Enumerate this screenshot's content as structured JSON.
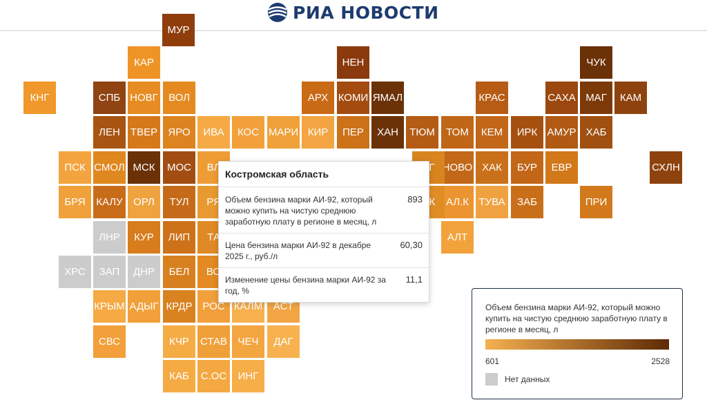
{
  "brand": {
    "name": "РИА НОВОСТИ",
    "color": "#1d3b6e"
  },
  "tiles": [
    {
      "label": "МУР",
      "color": "#8f3d0b"
    },
    {
      "label": "КАР",
      "color": "#ee9426"
    },
    {
      "label": "НЕН",
      "color": "#8a3a0c"
    },
    {
      "label": "ЧУК",
      "color": "#6b3107"
    },
    {
      "label": "КНГ",
      "color": "#f0982b"
    },
    {
      "label": "СПБ",
      "color": "#8f4411"
    },
    {
      "label": "НОВГ",
      "color": "#e68c22"
    },
    {
      "label": "ВОЛ",
      "color": "#e48a20"
    },
    {
      "label": "АРХ",
      "color": "#c96a16"
    },
    {
      "label": "КОМИ",
      "color": "#a44c10"
    },
    {
      "label": "ЯМАЛ",
      "color": "#6b3107"
    },
    {
      "label": "КРАС",
      "color": "#b65c15"
    },
    {
      "label": "САХА",
      "color": "#9a4810"
    },
    {
      "label": "МАГ",
      "color": "#7d3a09"
    },
    {
      "label": "КАМ",
      "color": "#8e430f"
    },
    {
      "label": "ЛЕН",
      "color": "#a85412"
    },
    {
      "label": "ТВЕР",
      "color": "#d6791b"
    },
    {
      "label": "ЯРО",
      "color": "#dd8320"
    },
    {
      "label": "ИВА",
      "color": "#f5aa45"
    },
    {
      "label": "КОС",
      "color": "#f2a03a"
    },
    {
      "label": "МАРИ",
      "color": "#f0a139"
    },
    {
      "label": "КИР",
      "color": "#f2a542"
    },
    {
      "label": "ПЕР",
      "color": "#cc7219"
    },
    {
      "label": "ХАН",
      "color": "#6b3107"
    },
    {
      "label": "ТЮМ",
      "color": "#b45b14"
    },
    {
      "label": "ТОМ",
      "color": "#c06617"
    },
    {
      "label": "КЕМ",
      "color": "#c26618"
    },
    {
      "label": "ИРК",
      "color": "#a5500f"
    },
    {
      "label": "АМУР",
      "color": "#b05a14"
    },
    {
      "label": "ХАБ",
      "color": "#a05011"
    },
    {
      "label": "ПСК",
      "color": "#f3a43f"
    },
    {
      "label": "СМОЛ",
      "color": "#e08820"
    },
    {
      "label": "МСК",
      "color": "#6b3107"
    },
    {
      "label": "МОС",
      "color": "#a24e12"
    },
    {
      "label": "ВЛ",
      "color": "#ee9d35"
    },
    {
      "label": "НОВО",
      "color": "#c26818"
    },
    {
      "label": "ХАК",
      "color": "#c9701a"
    },
    {
      "label": "БУР",
      "color": "#c26718"
    },
    {
      "label": "ЕВР",
      "color": "#d17819"
    },
    {
      "label": "СХЛН",
      "color": "#8e420d"
    },
    {
      "label": "БРЯ",
      "color": "#f0a139"
    },
    {
      "label": "КАЛУ",
      "color": "#c96c1a"
    },
    {
      "label": "ОРЛ",
      "color": "#eea33f"
    },
    {
      "label": "ТУЛ",
      "color": "#c56a18"
    },
    {
      "label": "АЛ.К",
      "color": "#ec9530"
    },
    {
      "label": "ТУВА",
      "color": "#f0a240"
    },
    {
      "label": "ЗАБ",
      "color": "#c96f1a"
    },
    {
      "label": "ПРИ",
      "color": "#d27a1b"
    },
    {
      "label": "ЛНР",
      "color": "#cccccc"
    },
    {
      "label": "КУР",
      "color": "#d77d1d"
    },
    {
      "label": "ЛИП",
      "color": "#cd7219"
    },
    {
      "label": "ТА",
      "color": "#e08a25"
    },
    {
      "label": "АЛТ",
      "color": "#f2a23b"
    },
    {
      "label": "ХРС",
      "color": "#cccccc"
    },
    {
      "label": "ЗАП",
      "color": "#cccccc"
    },
    {
      "label": "ДНР",
      "color": "#cccccc"
    },
    {
      "label": "БЕЛ",
      "color": "#d7801f"
    },
    {
      "label": "ВО",
      "color": "#e38a22"
    },
    {
      "label": "КРЫМ",
      "color": "#f5aa43"
    },
    {
      "label": "АДЫГ",
      "color": "#f1a03a"
    },
    {
      "label": "КРДР",
      "color": "#d98220"
    },
    {
      "label": "РОС",
      "color": "#f1a03b"
    },
    {
      "label": "КАЛМ",
      "color": "#f7b14f"
    },
    {
      "label": "АСТ",
      "color": "#f2a643"
    },
    {
      "label": "СВС",
      "color": "#f3a03a"
    },
    {
      "label": "КЧР",
      "color": "#f5ac45"
    },
    {
      "label": "СТАВ",
      "color": "#f0a039"
    },
    {
      "label": "ЧЕЧ",
      "color": "#f3a540"
    },
    {
      "label": "ДАГ",
      "color": "#f7b14f"
    },
    {
      "label": "КАБ",
      "color": "#f5ab44"
    },
    {
      "label": "С.ОС",
      "color": "#f4a842"
    },
    {
      "label": "ИНГ",
      "color": "#f6ae49"
    },
    {
      "label": "РГ",
      "color": "#d88520"
    },
    {
      "label": "СК",
      "color": "#e18d26"
    },
    {
      "label": "РЯ",
      "color": "#e89a30"
    }
  ],
  "tooltip": {
    "title": "Костромская область",
    "rows": [
      {
        "label": "Объем бензина марки АИ-92, который можно купить на чистую среднюю заработную плату в регионе в месяц, л",
        "value": "893"
      },
      {
        "label": "Цена бензина марки АИ-92 в декабре 2025 г., руб./л",
        "value": "60,30"
      },
      {
        "label": "Изменение цены бензина марки АИ-92 за год, %",
        "value": "11,1"
      }
    ]
  },
  "legend": {
    "title": "Объем бензина марки АИ-92, который можно купить на чистую среднюю заработную плату в регионе в месяц, л",
    "min": "601",
    "max": "2528",
    "min_color": "#f5b04f",
    "max_color": "#5e2a05",
    "nodata_label": "Нет данных",
    "nodata_color": "#cccccc"
  }
}
